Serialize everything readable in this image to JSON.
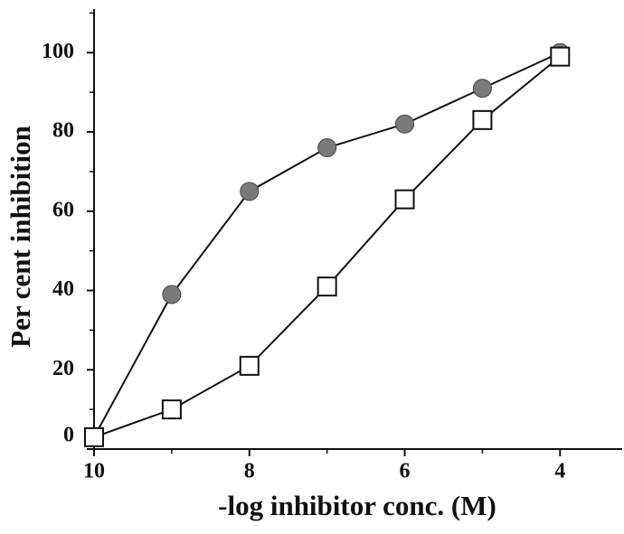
{
  "chart_data": {
    "type": "line",
    "xlabel": "-log inhibitor conc. (M)",
    "ylabel": "Per cent inhibition",
    "x": [
      10,
      9,
      8,
      7,
      6,
      5,
      4
    ],
    "series": [
      {
        "marker": "circle",
        "color": "#7a7a7a",
        "values": [
          3,
          39,
          65,
          76,
          82,
          91,
          100
        ]
      },
      {
        "marker": "square",
        "color": "#ffffff",
        "values": [
          3,
          10,
          21,
          41,
          63,
          83,
          99
        ]
      }
    ],
    "xlim": [
      10,
      3.2
    ],
    "xticks": [
      10,
      8,
      6,
      4
    ],
    "xminor": [
      9,
      7,
      5
    ],
    "ylim": [
      0,
      111
    ],
    "yticks": [
      0,
      20,
      40,
      60,
      80,
      100
    ],
    "yminor": [
      10,
      30,
      50,
      70,
      90,
      110
    ]
  }
}
